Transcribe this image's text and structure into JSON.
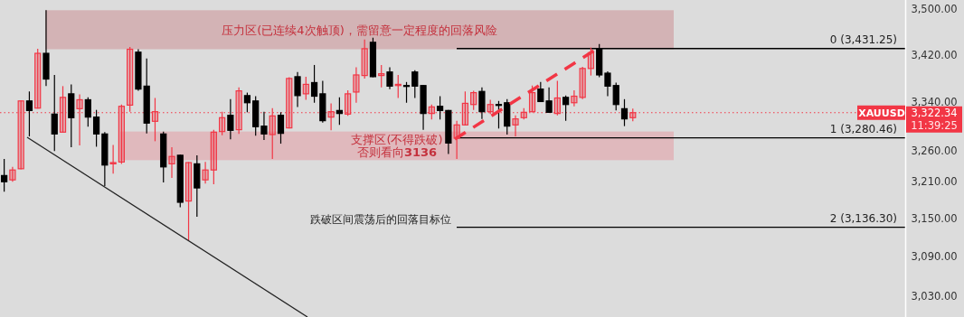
{
  "chart_data": {
    "type": "candlestick",
    "log": true,
    "tick_labels": "y",
    "categories": [
      null,
      null,
      null,
      null,
      null,
      null,
      null,
      null,
      null,
      null,
      null,
      null,
      null,
      null,
      null,
      null,
      null,
      null,
      null,
      null,
      null,
      null,
      null,
      null,
      null,
      null,
      null,
      null,
      null,
      null,
      null,
      null,
      null,
      null,
      null,
      null,
      null,
      null,
      null,
      null,
      null,
      null,
      null,
      null,
      null,
      null,
      null,
      null,
      null,
      null,
      null,
      null,
      null,
      null,
      null,
      null,
      null,
      null,
      null,
      null,
      null,
      null,
      null,
      null,
      null,
      null,
      null,
      null,
      null,
      null,
      null,
      null,
      null,
      null,
      null,
      null,
      null,
      null,
      null,
      null,
      null,
      null,
      null,
      null,
      null,
      null,
      null,
      null,
      null,
      null,
      null,
      null,
      null,
      null,
      null,
      null,
      null,
      null,
      null,
      null,
      null,
      null,
      null,
      null,
      null,
      null,
      null,
      null
    ],
    "ylim": [
      2998,
      3516
    ],
    "yticks": [
      {
        "value": 3030,
        "label": "3,030.00"
      },
      {
        "value": 3090,
        "label": "3,090.00"
      },
      {
        "value": 3150,
        "label": "3,150.00"
      },
      {
        "value": 3210,
        "label": "3,210.00"
      },
      {
        "value": 3260,
        "label": "3,260.00"
      },
      {
        "value": 3340,
        "label": "3,340.00"
      },
      {
        "value": 3420,
        "label": "3,420.00"
      },
      {
        "value": 3500,
        "label": "3,500.00"
      }
    ],
    "series": [
      {
        "colors": [
          "#000000",
          "#f23645",
          "#f23645",
          "#000000",
          "#f23645",
          "#000000",
          "#000000",
          "#f23645",
          "#000000",
          "#f23645",
          "#000000",
          "#000000",
          "#000000",
          "#f23645",
          "#f23645",
          "#f23645",
          "#000000",
          "#000000",
          "#f23645",
          "#000000",
          "#f23645",
          "#000000",
          "#f23645",
          "#000000",
          "#f23645",
          "#f23645",
          "#f23645",
          "#000000",
          "#f23645",
          "#000000",
          "#000000",
          "#000000",
          "#f23645",
          "#000000",
          "#f23645",
          "#000000",
          "#f23645",
          "#000000",
          "#000000",
          "#f23645",
          "#000000",
          "#f23645",
          "#f23645",
          "#f23645",
          "#000000",
          "#f23645",
          "#000000",
          "#f23645",
          "#000000",
          "#000000",
          "#000000",
          "#f23645",
          "#000000",
          "#000000",
          "#f23645",
          "#f23645",
          "#f23645",
          "#000000",
          "#f23645",
          "#000000",
          "#000000",
          "#f23645",
          "#f23645",
          "#f23645",
          "#000000",
          "#000000",
          "#f23645",
          "#000000",
          "#f23645",
          "#f23645",
          "#f23645",
          "#000000",
          "#000000",
          "#000000",
          "#000000",
          "#f23645",
          null,
          null,
          null,
          null,
          null,
          null,
          null,
          null,
          null,
          null,
          null,
          null,
          null,
          null,
          null,
          null,
          null,
          null,
          null,
          null,
          null,
          null,
          null,
          null,
          null,
          null,
          null,
          null,
          null,
          null,
          null,
          null
        ],
        "ohlc": [
          [
            3219,
            3246,
            3193,
            3209
          ],
          [
            3212,
            3233,
            3209,
            3228
          ],
          [
            3230,
            3343,
            3229,
            3342
          ],
          [
            3342,
            3358,
            3283,
            3326
          ],
          [
            3330,
            3431,
            3329,
            3423
          ],
          [
            3423,
            3498,
            3367,
            3379
          ],
          [
            3320,
            3386,
            3259,
            3287
          ],
          [
            3290,
            3367,
            3289,
            3348
          ],
          [
            3354,
            3370,
            3265,
            3314
          ],
          [
            3329,
            3353,
            3268,
            3344
          ],
          [
            3344,
            3348,
            3299,
            3315
          ],
          [
            3315,
            3327,
            3266,
            3287
          ],
          [
            3287,
            3290,
            3202,
            3236
          ],
          [
            3238,
            3269,
            3222,
            3240
          ],
          [
            3241,
            3336,
            3238,
            3333
          ],
          [
            3335,
            3434,
            3324,
            3430
          ],
          [
            3425,
            3430,
            3359,
            3362
          ],
          [
            3367,
            3414,
            3288,
            3305
          ],
          [
            3308,
            3347,
            3275,
            3324
          ],
          [
            3287,
            3291,
            3208,
            3233
          ],
          [
            3238,
            3265,
            3215,
            3250
          ],
          [
            3252,
            3253,
            3168,
            3176
          ],
          [
            3178,
            3241,
            3116,
            3240
          ],
          [
            3238,
            3252,
            3153,
            3199
          ],
          [
            3212,
            3241,
            3206,
            3228
          ],
          [
            3228,
            3294,
            3205,
            3290
          ],
          [
            3291,
            3324,
            3285,
            3314
          ],
          [
            3318,
            3345,
            3278,
            3293
          ],
          [
            3294,
            3365,
            3287,
            3359
          ],
          [
            3351,
            3356,
            3323,
            3339
          ],
          [
            3342,
            3350,
            3284,
            3299
          ],
          [
            3300,
            3324,
            3277,
            3287
          ],
          [
            3286,
            3330,
            3246,
            3317
          ],
          [
            3318,
            3323,
            3271,
            3288
          ],
          [
            3297,
            3382,
            3296,
            3380
          ],
          [
            3383,
            3391,
            3332,
            3351
          ],
          [
            3354,
            3383,
            3344,
            3370
          ],
          [
            3373,
            3403,
            3339,
            3350
          ],
          [
            3354,
            3376,
            3306,
            3309
          ],
          [
            3315,
            3338,
            3293,
            3324
          ],
          [
            3326,
            3348,
            3302,
            3321
          ],
          [
            3320,
            3360,
            3317,
            3354
          ],
          [
            3357,
            3399,
            3339,
            3386
          ],
          [
            3385,
            3447,
            3380,
            3431
          ],
          [
            3442,
            3450,
            3382,
            3383
          ],
          [
            3385,
            3403,
            3365,
            3388
          ],
          [
            3391,
            3399,
            3362,
            3367
          ],
          [
            3368,
            3386,
            3347,
            3370
          ],
          [
            3368,
            3374,
            3339,
            3367
          ],
          [
            3391,
            3394,
            3347,
            3367
          ],
          [
            3368,
            3369,
            3294,
            3321
          ],
          [
            3321,
            3336,
            3311,
            3332
          ],
          [
            3333,
            3350,
            3311,
            3326
          ],
          [
            3326,
            3327,
            3254,
            3272
          ],
          [
            3280,
            3309,
            3246,
            3302
          ],
          [
            3302,
            3358,
            3301,
            3338
          ],
          [
            3336,
            3359,
            3327,
            3356
          ],
          [
            3358,
            3365,
            3312,
            3324
          ],
          [
            3324,
            3344,
            3320,
            3336
          ],
          [
            3336,
            3342,
            3296,
            3335
          ],
          [
            3339,
            3345,
            3286,
            3300
          ],
          [
            3302,
            3318,
            3283,
            3312
          ],
          [
            3314,
            3330,
            3311,
            3323
          ],
          [
            3324,
            3368,
            3323,
            3356
          ],
          [
            3362,
            3374,
            3340,
            3341
          ],
          [
            3342,
            3365,
            3322,
            3323
          ],
          [
            3321,
            3376,
            3318,
            3347
          ],
          [
            3348,
            3351,
            3309,
            3336
          ],
          [
            3339,
            3360,
            3333,
            3350
          ],
          [
            3348,
            3400,
            3345,
            3397
          ],
          [
            3397,
            3433,
            3385,
            3424
          ],
          [
            3431,
            3439,
            3382,
            3386
          ],
          [
            3389,
            3392,
            3350,
            3367
          ],
          [
            3368,
            3373,
            3326,
            3336
          ],
          [
            3329,
            3345,
            3300,
            3312
          ],
          [
            3314,
            3329,
            3308,
            3322.34
          ],
          null,
          null,
          null,
          null,
          null,
          null,
          null,
          null,
          null,
          null,
          null,
          null,
          null,
          null,
          null,
          null,
          null,
          null,
          null,
          null,
          null,
          null,
          null,
          null,
          null,
          null,
          null,
          null,
          null,
          null,
          null,
          null
        ]
      }
    ],
    "bands": [
      {
        "axis": "y",
        "from": 3430,
        "to": 3498,
        "color": "#d3b3b5",
        "label": "压力区(已连续4次触顶)，需留意一定程度的回落风险"
      },
      {
        "axis": "y",
        "from": 3244,
        "to": 3291,
        "color": "#e0b9bd",
        "label": "支撑区(不得跌破)\n否则看向3136"
      }
    ],
    "ref_lines": [
      {
        "axis": "y",
        "value": 3431.25,
        "label": "0 (3,431.25)",
        "color": "#000000",
        "line_style": "solid"
      },
      {
        "axis": "y",
        "value": 3280.46,
        "label": "1 (3,280.46)",
        "color": "#000000",
        "line_style": "solid"
      },
      {
        "axis": "y",
        "value": 3136.3,
        "label": "2 (3,136.30)",
        "color": "#000000",
        "line_style": "solid"
      },
      {
        "axis": "y",
        "value": 3322.34,
        "label": "XAUUSD",
        "color": "#f23645",
        "line_style": "dotted"
      }
    ],
    "annotations": [
      "跌破区间震荡后的回落目标位",
      "3,322.34",
      "11:39:25"
    ]
  }
}
